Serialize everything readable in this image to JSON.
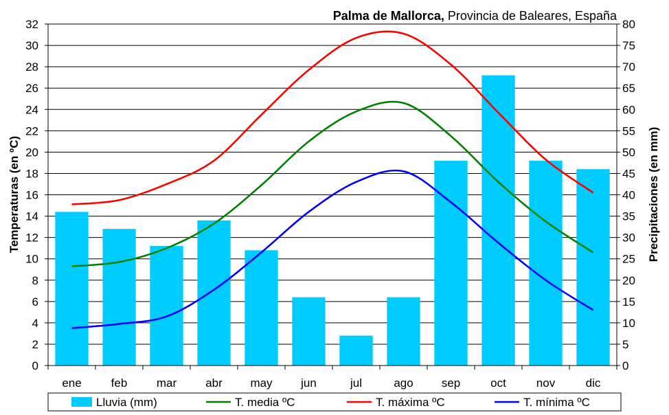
{
  "chart_data": {
    "type": "bar",
    "title": {
      "bold_part": "Palma de Mallorca,",
      "rest": " Provincia de Baleares, España"
    },
    "categories": [
      "ene",
      "feb",
      "mar",
      "abr",
      "may",
      "jun",
      "jul",
      "ago",
      "sep",
      "oct",
      "nov",
      "dic"
    ],
    "ylabel_left": "Temperaturas (en ºC)",
    "ylabel_right": "Precipitaciones (en mm)",
    "ylim_left": [
      0,
      32
    ],
    "ylim_right": [
      0,
      80
    ],
    "yticks_left": [
      "0",
      "2",
      "4",
      "6",
      "8",
      "10",
      "12",
      "14",
      "16",
      "18",
      "20",
      "22",
      "24",
      "26",
      "28",
      "30",
      "32"
    ],
    "yticks_right": [
      "0",
      "5",
      "10",
      "15",
      "20",
      "25",
      "30",
      "35",
      "40",
      "45",
      "50",
      "55",
      "60",
      "65",
      "70",
      "75",
      "80"
    ],
    "grid": true,
    "legend_position": "bottom",
    "bars": {
      "name": "Lluvia (mm)",
      "axis": "right",
      "color": "#00ccff",
      "values": [
        36,
        32,
        28,
        34,
        27,
        16,
        7,
        16,
        48,
        68,
        48,
        46
      ]
    },
    "series": [
      {
        "name": "T. media ºC",
        "axis": "left",
        "color": "#008000",
        "values": [
          9.3,
          9.7,
          11.0,
          13.3,
          16.9,
          21.0,
          23.8,
          24.6,
          21.5,
          17.2,
          13.5,
          10.6
        ]
      },
      {
        "name": "T. máxima ºC",
        "axis": "left",
        "color": "#ff0000",
        "values": [
          15.1,
          15.5,
          17.0,
          19.2,
          23.5,
          27.7,
          30.7,
          31.1,
          28.2,
          23.7,
          19.3,
          16.2
        ]
      },
      {
        "name": "T. mínima ºC",
        "axis": "left",
        "color": "#0000ff",
        "values": [
          3.5,
          3.9,
          4.6,
          7.1,
          10.6,
          14.4,
          17.2,
          18.2,
          15.3,
          11.5,
          8.0,
          5.2
        ]
      }
    ]
  }
}
